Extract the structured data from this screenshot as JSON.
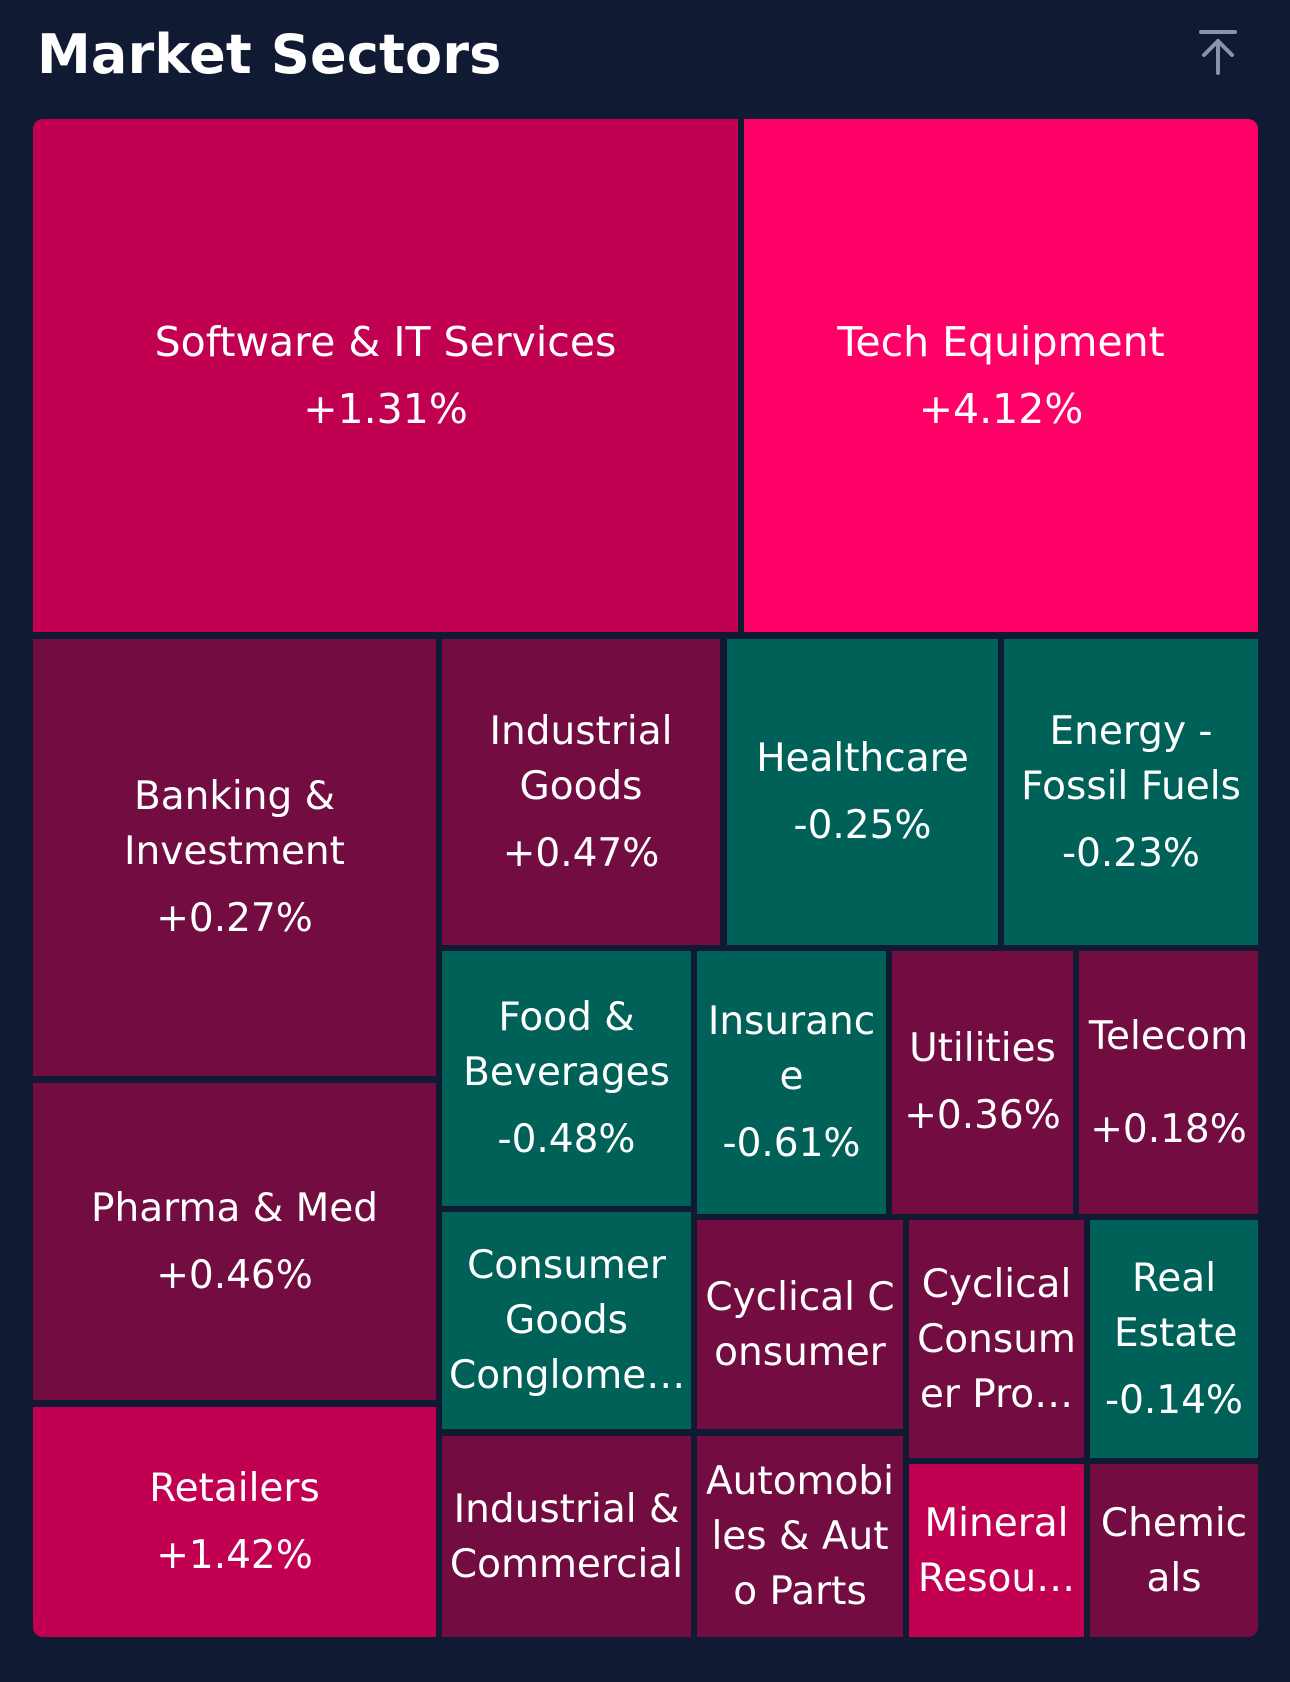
{
  "header": {
    "title": "Market Sectors",
    "scroll_top_icon": "arrow-up-to-top-icon"
  },
  "colors": {
    "background": "#111a33",
    "strong_positive": "#ff0066",
    "positive": "#c20052",
    "mild_positive": "#730c40",
    "negative": "#006159"
  },
  "sectors": [
    {
      "name": "Software & IT Services",
      "change": "+1.31%"
    },
    {
      "name": "Tech Equipment",
      "change": "+4.12%"
    },
    {
      "name": "Banking & Investment",
      "change": "+0.27%"
    },
    {
      "name": "Industrial Goods",
      "change": "+0.47%"
    },
    {
      "name": "Healthcare",
      "change": "-0.25%"
    },
    {
      "name": "Energy - Fossil Fuels",
      "change": "-0.23%"
    },
    {
      "name": "Food & Beverages",
      "change": "-0.48%"
    },
    {
      "name": "Insurance",
      "change": "-0.61%"
    },
    {
      "name": "Utilities",
      "change": "+0.36%"
    },
    {
      "name": "Telecom",
      "change": "+0.18%"
    },
    {
      "name": "Pharma & Med",
      "change": "+0.46%"
    },
    {
      "name": "Consumer Goods Conglome…",
      "change": ""
    },
    {
      "name": "Cyclical Consumer",
      "change": ""
    },
    {
      "name": "Cyclical Consumer Pro…",
      "change": ""
    },
    {
      "name": "Real Estate",
      "change": "-0.14%"
    },
    {
      "name": "Retailers",
      "change": "+1.42%"
    },
    {
      "name": "Industrial & Commercial",
      "change": ""
    },
    {
      "name": "Automobiles & Auto Parts",
      "change": ""
    },
    {
      "name": "Mineral Resou…",
      "change": ""
    },
    {
      "name": "Chemicals",
      "change": ""
    }
  ]
}
